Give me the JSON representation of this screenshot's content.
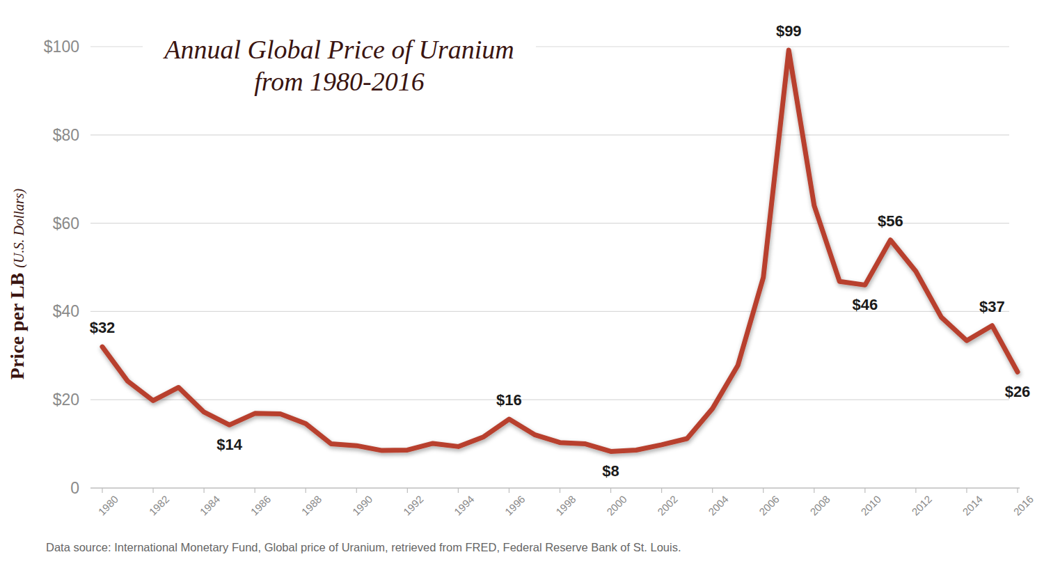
{
  "chart_data": {
    "type": "line",
    "title": "Annual Global Price of Uranium from 1980-2016",
    "ylabel": "Price per LB (U.S. Dollars)",
    "source": "Data source: International Monetary Fund, Global price of Uranium, retrieved from FRED, Federal Reserve Bank of St. Louis.",
    "x": [
      1980,
      1981,
      1982,
      1983,
      1984,
      1985,
      1986,
      1987,
      1988,
      1989,
      1990,
      1991,
      1992,
      1993,
      1994,
      1995,
      1996,
      1997,
      1998,
      1999,
      2000,
      2001,
      2002,
      2003,
      2004,
      2005,
      2006,
      2007,
      2008,
      2009,
      2010,
      2011,
      2012,
      2013,
      2014,
      2015,
      2016
    ],
    "values": [
      32,
      24.2,
      19.8,
      22.8,
      17.2,
      14.3,
      16.9,
      16.8,
      14.6,
      10,
      9.6,
      8.5,
      8.6,
      10.1,
      9.4,
      11.6,
      15.6,
      12.1,
      10.3,
      10,
      8.3,
      8.6,
      9.8,
      11.2,
      18,
      27.8,
      47.7,
      99.2,
      64,
      46.8,
      46,
      56.2,
      49.1,
      38.7,
      33.4,
      36.8,
      26.3
    ],
    "color": "#b8412f",
    "xlim": [
      1980,
      2016
    ],
    "xticks": [
      1980,
      1982,
      1984,
      1986,
      1988,
      1990,
      1992,
      1994,
      1996,
      1998,
      2000,
      2002,
      2004,
      2006,
      2008,
      2010,
      2012,
      2014,
      2016
    ],
    "ylim": [
      0,
      100
    ],
    "yticks": [
      0,
      {
        "value": 20,
        "label": "$20"
      },
      {
        "value": 40,
        "label": "$40"
      },
      {
        "value": 60,
        "label": "$60"
      },
      {
        "value": 80,
        "label": "$80"
      },
      {
        "value": 100,
        "label": "$100"
      }
    ],
    "grid": true,
    "annotations": [
      {
        "x": 1980,
        "text": "$32"
      },
      {
        "x": 1985,
        "text": "$14"
      },
      {
        "x": 1996,
        "text": "$16"
      },
      {
        "x": 2000,
        "text": "$8"
      },
      {
        "x": 2007,
        "text": "$99"
      },
      {
        "x": 2010,
        "text": "$46"
      },
      {
        "x": 2011,
        "text": "$56"
      },
      {
        "x": 2015,
        "text": "$37"
      },
      {
        "x": 2016,
        "text": "$26"
      }
    ]
  }
}
